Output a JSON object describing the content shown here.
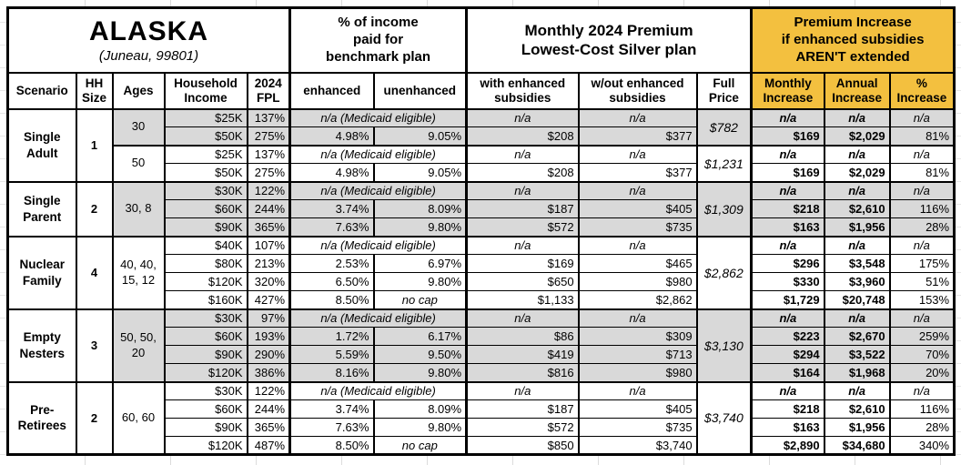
{
  "header": {
    "state": "ALASKA",
    "location": "(Juneau, 99801)",
    "benchmark_section": "% of income\npaid for\nbenchmark plan",
    "premium_section": "Monthly 2024 Premium\nLowest-Cost Silver plan",
    "increase_section": "Premium Increase\nif enhanced subsidies\nAREN'T extended"
  },
  "colors": {
    "accent_orange": "#F3C03F",
    "row_gray": "#D9D9D9",
    "border": "#000000"
  },
  "columns": {
    "scenario": "Scenario",
    "hh_size": "HH\nSize",
    "ages": "Ages",
    "income": "Household\nIncome",
    "fpl": "2024\nFPL",
    "enhanced": "enhanced",
    "unenhanced": "unenhanced",
    "with_sub": "with enhanced\nsubsidies",
    "wout_sub": "w/out enhanced\nsubsidies",
    "full_price": "Full\nPrice",
    "monthly_inc": "Monthly\nIncrease",
    "annual_inc": "Annual\nIncrease",
    "pct_inc": "%\nIncrease"
  },
  "labels": {
    "na": "n/a",
    "medicaid": "n/a (Medicaid eligible)",
    "no_cap": "no cap"
  },
  "groups": [
    {
      "name": "Single\nAdult",
      "hh": "1",
      "subgroups": [
        {
          "ages": "30",
          "shaded": true,
          "full_price": "$782",
          "rows": [
            {
              "income": "$25K",
              "fpl": "137%",
              "medicaid": true,
              "with_sub": "n/a",
              "wout_sub": "n/a",
              "monthly": "n/a",
              "annual": "n/a",
              "pct": "n/a"
            },
            {
              "income": "$50K",
              "fpl": "275%",
              "enhanced": "4.98%",
              "unenhanced": "9.05%",
              "with_sub": "$208",
              "wout_sub": "$377",
              "monthly": "$169",
              "annual": "$2,029",
              "pct": "81%"
            }
          ]
        },
        {
          "ages": "50",
          "shaded": false,
          "full_price": "$1,231",
          "rows": [
            {
              "income": "$25K",
              "fpl": "137%",
              "medicaid": true,
              "with_sub": "n/a",
              "wout_sub": "n/a",
              "monthly": "n/a",
              "annual": "n/a",
              "pct": "n/a"
            },
            {
              "income": "$50K",
              "fpl": "275%",
              "enhanced": "4.98%",
              "unenhanced": "9.05%",
              "with_sub": "$208",
              "wout_sub": "$377",
              "monthly": "$169",
              "annual": "$2,029",
              "pct": "81%"
            }
          ]
        }
      ]
    },
    {
      "name": "Single\nParent",
      "hh": "2",
      "subgroups": [
        {
          "ages": "30, 8",
          "shaded": true,
          "full_price": "$1,309",
          "rows": [
            {
              "income": "$30K",
              "fpl": "122%",
              "medicaid": true,
              "with_sub": "n/a",
              "wout_sub": "n/a",
              "monthly": "n/a",
              "annual": "n/a",
              "pct": "n/a"
            },
            {
              "income": "$60K",
              "fpl": "244%",
              "enhanced": "3.74%",
              "unenhanced": "8.09%",
              "with_sub": "$187",
              "wout_sub": "$405",
              "monthly": "$218",
              "annual": "$2,610",
              "pct": "116%"
            },
            {
              "income": "$90K",
              "fpl": "365%",
              "enhanced": "7.63%",
              "unenhanced": "9.80%",
              "with_sub": "$572",
              "wout_sub": "$735",
              "monthly": "$163",
              "annual": "$1,956",
              "pct": "28%"
            }
          ]
        }
      ]
    },
    {
      "name": "Nuclear\nFamily",
      "hh": "4",
      "subgroups": [
        {
          "ages": "40, 40,\n15, 12",
          "shaded": false,
          "full_price": "$2,862",
          "rows": [
            {
              "income": "$40K",
              "fpl": "107%",
              "medicaid": true,
              "with_sub": "n/a",
              "wout_sub": "n/a",
              "monthly": "n/a",
              "annual": "n/a",
              "pct": "n/a"
            },
            {
              "income": "$80K",
              "fpl": "213%",
              "enhanced": "2.53%",
              "unenhanced": "6.97%",
              "with_sub": "$169",
              "wout_sub": "$465",
              "monthly": "$296",
              "annual": "$3,548",
              "pct": "175%"
            },
            {
              "income": "$120K",
              "fpl": "320%",
              "enhanced": "6.50%",
              "unenhanced": "9.80%",
              "with_sub": "$650",
              "wout_sub": "$980",
              "monthly": "$330",
              "annual": "$3,960",
              "pct": "51%"
            },
            {
              "income": "$160K",
              "fpl": "427%",
              "enhanced": "8.50%",
              "unenhanced": "no cap",
              "with_sub": "$1,133",
              "wout_sub": "$2,862",
              "monthly": "$1,729",
              "annual": "$20,748",
              "pct": "153%"
            }
          ]
        }
      ]
    },
    {
      "name": "Empty\nNesters",
      "hh": "3",
      "subgroups": [
        {
          "ages": "50, 50,\n20",
          "shaded": true,
          "full_price": "$3,130",
          "rows": [
            {
              "income": "$30K",
              "fpl": "97%",
              "medicaid": true,
              "with_sub": "n/a",
              "wout_sub": "n/a",
              "monthly": "n/a",
              "annual": "n/a",
              "pct": "n/a"
            },
            {
              "income": "$60K",
              "fpl": "193%",
              "enhanced": "1.72%",
              "unenhanced": "6.17%",
              "with_sub": "$86",
              "wout_sub": "$309",
              "monthly": "$223",
              "annual": "$2,670",
              "pct": "259%"
            },
            {
              "income": "$90K",
              "fpl": "290%",
              "enhanced": "5.59%",
              "unenhanced": "9.50%",
              "with_sub": "$419",
              "wout_sub": "$713",
              "monthly": "$294",
              "annual": "$3,522",
              "pct": "70%"
            },
            {
              "income": "$120K",
              "fpl": "386%",
              "enhanced": "8.16%",
              "unenhanced": "9.80%",
              "with_sub": "$816",
              "wout_sub": "$980",
              "monthly": "$164",
              "annual": "$1,968",
              "pct": "20%"
            }
          ]
        }
      ]
    },
    {
      "name": "Pre-\nRetirees",
      "hh": "2",
      "subgroups": [
        {
          "ages": "60, 60",
          "shaded": false,
          "full_price": "$3,740",
          "rows": [
            {
              "income": "$30K",
              "fpl": "122%",
              "medicaid": true,
              "with_sub": "n/a",
              "wout_sub": "n/a",
              "monthly": "n/a",
              "annual": "n/a",
              "pct": "n/a"
            },
            {
              "income": "$60K",
              "fpl": "244%",
              "enhanced": "3.74%",
              "unenhanced": "8.09%",
              "with_sub": "$187",
              "wout_sub": "$405",
              "monthly": "$218",
              "annual": "$2,610",
              "pct": "116%"
            },
            {
              "income": "$90K",
              "fpl": "365%",
              "enhanced": "7.63%",
              "unenhanced": "9.80%",
              "with_sub": "$572",
              "wout_sub": "$735",
              "monthly": "$163",
              "annual": "$1,956",
              "pct": "28%"
            },
            {
              "income": "$120K",
              "fpl": "487%",
              "enhanced": "8.50%",
              "unenhanced": "no cap",
              "with_sub": "$850",
              "wout_sub": "$3,740",
              "monthly": "$2,890",
              "annual": "$34,680",
              "pct": "340%"
            }
          ]
        }
      ]
    }
  ]
}
